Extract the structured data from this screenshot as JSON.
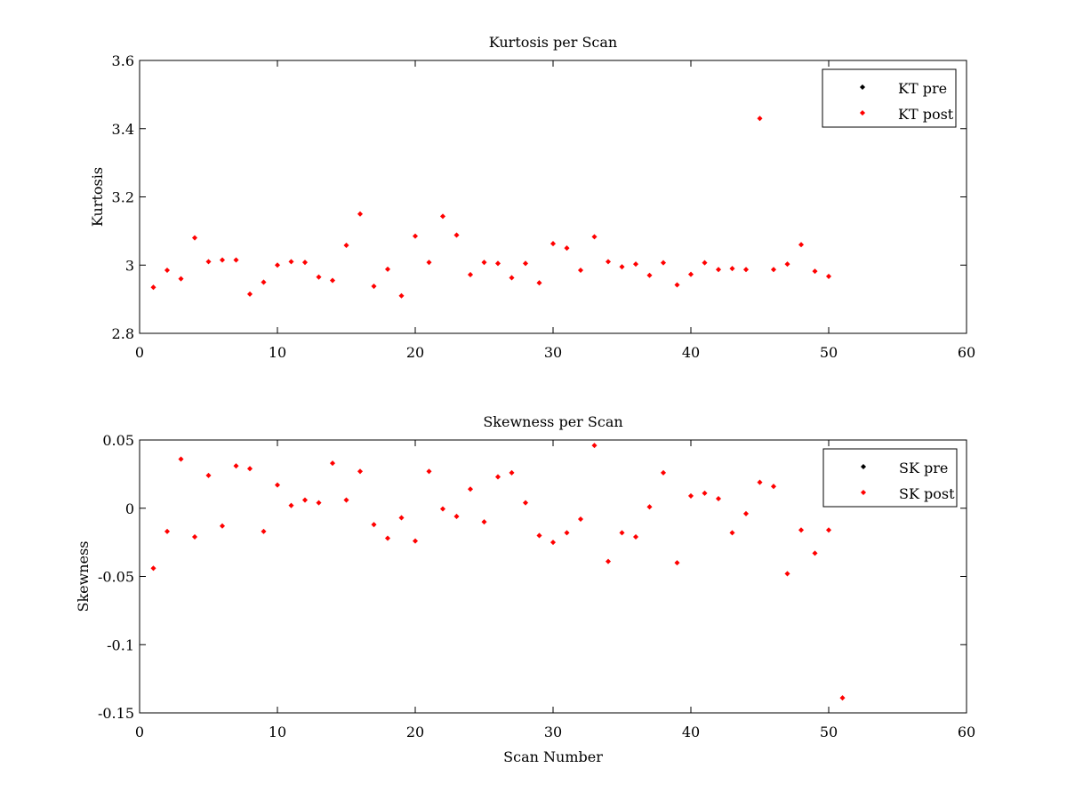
{
  "chart_data": [
    {
      "type": "scatter",
      "title": "Kurtosis per Scan",
      "xlabel": "",
      "ylabel": "Kurtosis",
      "xlim": [
        0,
        60
      ],
      "ylim": [
        2.8,
        3.6
      ],
      "xticks": [
        0,
        10,
        20,
        30,
        40,
        50,
        60
      ],
      "yticks": [
        2.8,
        3.0,
        3.2,
        3.4,
        3.6
      ],
      "xtick_labels": [
        "0",
        "10",
        "20",
        "30",
        "40",
        "50",
        "60"
      ],
      "ytick_labels": [
        "2.8",
        "3",
        "3.2",
        "3.4",
        "3.6"
      ],
      "grid": false,
      "legend_position": "top-right",
      "series": [
        {
          "name": "KT pre",
          "color": "#000000",
          "x": [],
          "y": []
        },
        {
          "name": "KT post",
          "color": "#ff0000",
          "x": [
            1,
            2,
            3,
            4,
            5,
            6,
            7,
            8,
            9,
            10,
            11,
            12,
            13,
            14,
            15,
            16,
            17,
            18,
            19,
            20,
            21,
            22,
            23,
            24,
            25,
            26,
            27,
            28,
            29,
            30,
            31,
            32,
            33,
            34,
            35,
            36,
            37,
            38,
            39,
            40,
            41,
            42,
            43,
            44,
            45,
            46,
            47,
            48,
            49,
            50
          ],
          "y": [
            2.935,
            2.985,
            2.96,
            3.08,
            3.01,
            3.015,
            3.015,
            2.915,
            2.95,
            3.0,
            3.01,
            3.008,
            2.965,
            2.955,
            3.058,
            3.15,
            2.938,
            2.988,
            2.91,
            3.085,
            3.008,
            3.143,
            3.088,
            2.972,
            3.008,
            3.005,
            2.963,
            3.005,
            2.948,
            3.063,
            3.05,
            2.985,
            3.083,
            3.01,
            2.995,
            3.003,
            2.97,
            3.007,
            2.942,
            2.973,
            3.007,
            2.987,
            2.99,
            2.987,
            3.43,
            2.987,
            3.003,
            3.06,
            2.982,
            2.967
          ]
        }
      ]
    },
    {
      "type": "scatter",
      "title": "Skewness per Scan",
      "xlabel": "Scan Number",
      "ylabel": "Skewness",
      "xlim": [
        0,
        60
      ],
      "ylim": [
        -0.15,
        0.05
      ],
      "xticks": [
        0,
        10,
        20,
        30,
        40,
        50,
        60
      ],
      "yticks": [
        -0.15,
        -0.1,
        -0.05,
        0,
        0.05
      ],
      "xtick_labels": [
        "0",
        "10",
        "20",
        "30",
        "40",
        "50",
        "60"
      ],
      "ytick_labels": [
        "-0.15",
        "-0.1",
        "-0.05",
        "0",
        "0.05"
      ],
      "grid": false,
      "legend_position": "top-right",
      "series": [
        {
          "name": "SK pre",
          "color": "#000000",
          "x": [],
          "y": []
        },
        {
          "name": "SK post",
          "color": "#ff0000",
          "x": [
            1,
            2,
            3,
            4,
            5,
            6,
            7,
            8,
            9,
            10,
            11,
            12,
            13,
            14,
            15,
            16,
            17,
            18,
            19,
            20,
            21,
            22,
            23,
            24,
            25,
            26,
            27,
            28,
            29,
            30,
            31,
            32,
            33,
            34,
            35,
            36,
            37,
            38,
            39,
            40,
            41,
            42,
            43,
            44,
            45,
            46,
            47,
            48,
            49,
            50,
            51
          ],
          "y": [
            -0.044,
            -0.017,
            0.036,
            -0.021,
            0.024,
            -0.013,
            0.031,
            0.029,
            -0.017,
            0.017,
            0.002,
            0.006,
            0.004,
            0.033,
            0.006,
            0.027,
            -0.012,
            -0.022,
            -0.007,
            -0.024,
            0.027,
            -0.0005,
            -0.006,
            0.014,
            -0.01,
            0.023,
            0.026,
            0.004,
            -0.02,
            -0.025,
            -0.018,
            -0.008,
            0.046,
            -0.039,
            -0.018,
            -0.021,
            0.001,
            0.026,
            -0.04,
            0.009,
            0.011,
            0.007,
            -0.018,
            -0.004,
            0.019,
            0.016,
            -0.048,
            -0.016,
            -0.033,
            -0.016,
            -0.139
          ]
        }
      ]
    }
  ]
}
